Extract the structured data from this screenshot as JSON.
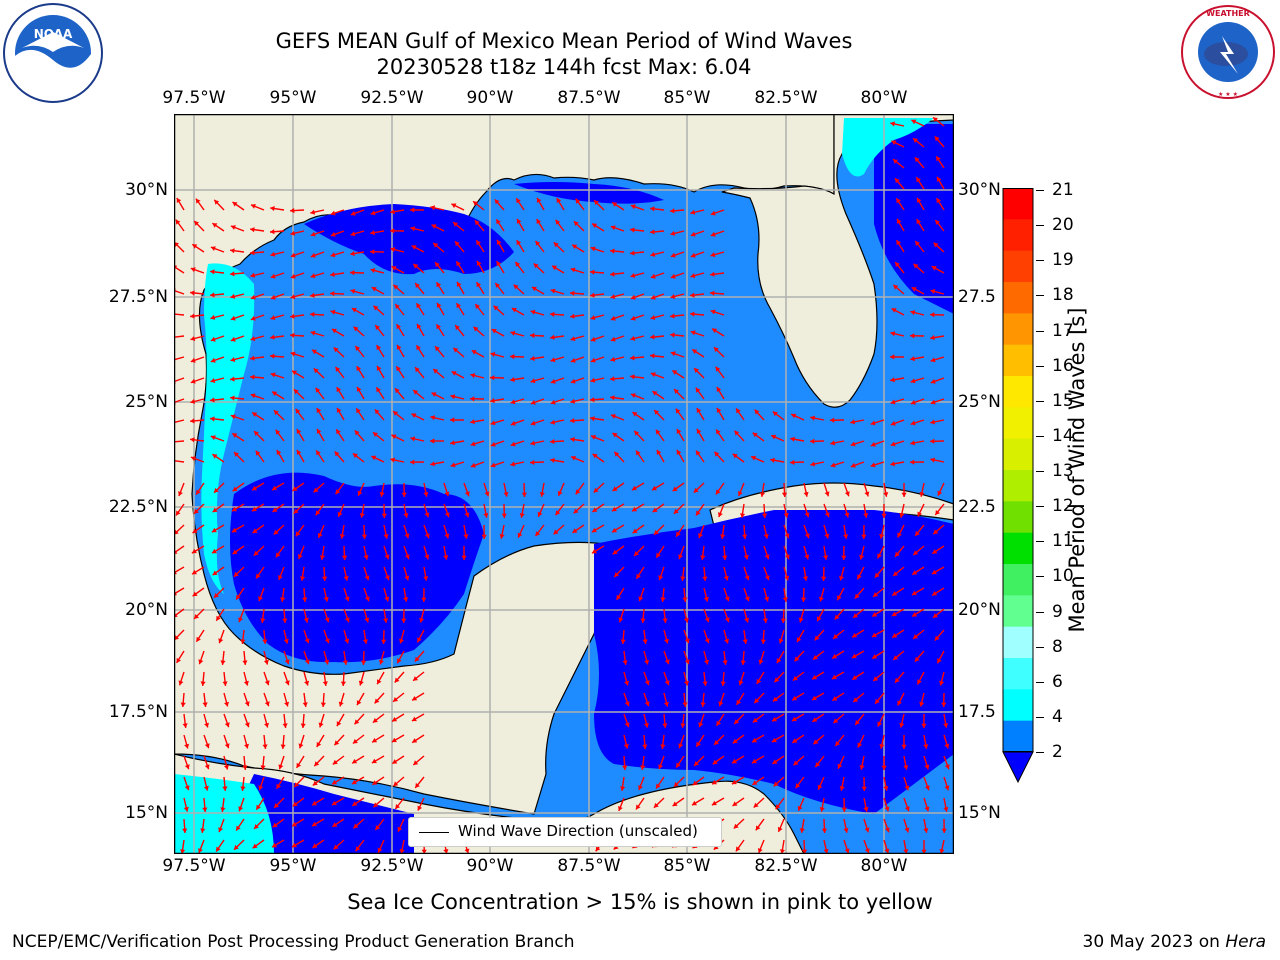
{
  "header": {
    "title_line1": "GEFS MEAN Gulf of Mexico Mean Period of Wind Waves",
    "title_line2": "20230528 t18z 144h fcst   Max: 6.04"
  },
  "logos": {
    "left": "NOAA",
    "right": "NATIONAL WEATHER SERVICE"
  },
  "map": {
    "lon_ticks": [
      "97.5°W",
      "95°W",
      "92.5°W",
      "90°W",
      "87.5°W",
      "85°W",
      "82.5°W",
      "80°W"
    ],
    "lat_ticks_left": [
      "30°N",
      "27.5°N",
      "25°N",
      "22.5°N",
      "20°N",
      "17.5°N",
      "15°N"
    ],
    "lat_ticks_right": [
      "30°N",
      "27.5",
      "25°N",
      "22.5",
      "20°N",
      "17.5",
      "15°N"
    ],
    "land_color": "#efeedc",
    "arrow_color": "#ff0000",
    "legend_label": "Wind Wave Direction (unscaled)"
  },
  "colorbar": {
    "label": "Mean Period of Wind Waves [s]",
    "ticks": [
      "21",
      "20",
      "19",
      "18",
      "17",
      "16",
      "15",
      "14",
      "13",
      "12",
      "11",
      "10",
      "9",
      "8",
      "6",
      "4",
      "2"
    ],
    "colors": [
      "#ff0000",
      "#ff2000",
      "#ff4000",
      "#ff6a00",
      "#ff9500",
      "#ffbf00",
      "#ffe800",
      "#f0f000",
      "#d8f000",
      "#b0ee00",
      "#70e000",
      "#00e000",
      "#40f060",
      "#60ff90",
      "#a0ffff",
      "#40ffff",
      "#00ffff",
      "#0080ff"
    ]
  },
  "note": "Sea Ice Concentration > 15% is shown in pink to yellow",
  "footer": {
    "left": "NCEP/EMC/Verification Post Processing Product Generation Branch",
    "right_prefix": "30 May 2023 on ",
    "right_host": "Hera"
  }
}
